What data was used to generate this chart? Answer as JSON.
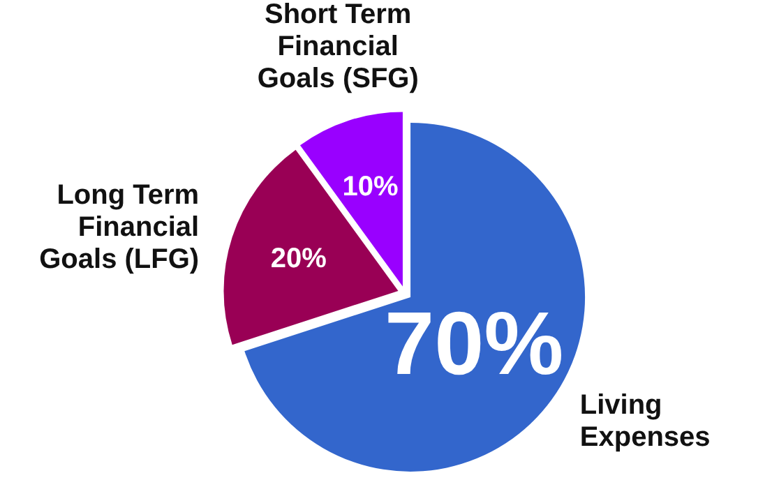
{
  "chart_data": {
    "type": "pie",
    "categories": [
      "Living Expenses",
      "Long Term Financial Goals (LFG)",
      "Short Term Financial Goals (SFG)"
    ],
    "values": [
      70,
      20,
      10
    ],
    "colors": [
      "#3366cc",
      "#990055",
      "#9900ff"
    ],
    "value_labels": [
      "70%",
      "20%",
      "10%"
    ]
  }
}
